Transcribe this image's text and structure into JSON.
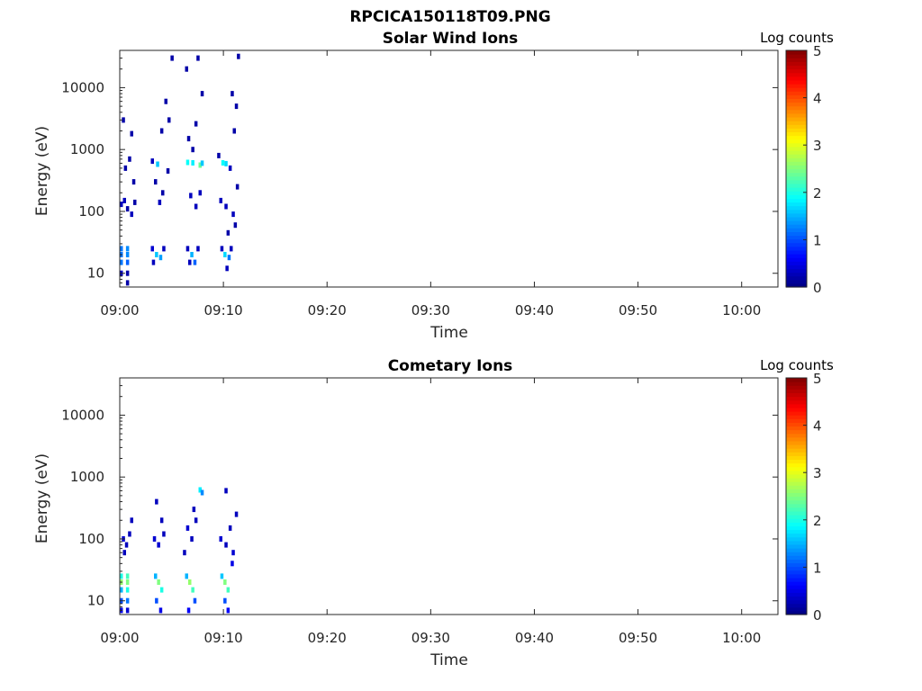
{
  "figure": {
    "title": "RPCICA150118T09.PNG"
  },
  "chart_data": [
    {
      "type": "heatmap",
      "title": "Solar Wind Ions",
      "xlabel": "Time",
      "ylabel": "Energy (eV)",
      "x_ticks": [
        "09:00",
        "09:10",
        "09:20",
        "09:30",
        "09:40",
        "09:50",
        "10:00"
      ],
      "x_tick_minutes": [
        0,
        10,
        20,
        30,
        40,
        50,
        60
      ],
      "x_range_minutes": [
        0,
        63.5
      ],
      "y_scale": "log",
      "y_ticks": [
        "10",
        "100",
        "1000",
        "10000"
      ],
      "y_tick_values": [
        10,
        100,
        1000,
        10000
      ],
      "y_range": [
        6,
        40000
      ],
      "grid": false,
      "colorbar": {
        "label": "Log counts",
        "range": [
          0,
          5
        ],
        "ticks": [
          "0",
          "1",
          "2",
          "3",
          "4",
          "5"
        ],
        "colormap": "jet"
      },
      "cells": [
        [
          0.0,
          25,
          1.2
        ],
        [
          0.0,
          20,
          1.2
        ],
        [
          0.0,
          15,
          1.2
        ],
        [
          0.0,
          10,
          0.3
        ],
        [
          0.6,
          25,
          1.3
        ],
        [
          0.6,
          20,
          1.3
        ],
        [
          0.6,
          15,
          1.1
        ],
        [
          0.6,
          10,
          0.2
        ],
        [
          0.6,
          7,
          0.2
        ],
        [
          0.0,
          130,
          0.3
        ],
        [
          0.3,
          150,
          0.3
        ],
        [
          0.6,
          110,
          0.2
        ],
        [
          1.0,
          90,
          0.3
        ],
        [
          1.3,
          140,
          0.2
        ],
        [
          0.2,
          3000,
          0.2
        ],
        [
          1.0,
          1800,
          0.2
        ],
        [
          0.4,
          500,
          0.2
        ],
        [
          1.2,
          300,
          0.2
        ],
        [
          0.8,
          700,
          0.2
        ],
        [
          3.0,
          25,
          0.4
        ],
        [
          3.4,
          20,
          1.6
        ],
        [
          3.8,
          18,
          1.4
        ],
        [
          3.1,
          15,
          0.3
        ],
        [
          4.1,
          25,
          0.3
        ],
        [
          3.5,
          580,
          1.6
        ],
        [
          3.0,
          650,
          0.3
        ],
        [
          3.3,
          300,
          0.2
        ],
        [
          3.7,
          140,
          0.3
        ],
        [
          4.0,
          200,
          0.2
        ],
        [
          4.3,
          6000,
          0.2
        ],
        [
          4.6,
          3000,
          0.2
        ],
        [
          4.9,
          30000,
          0.2
        ],
        [
          3.9,
          2000,
          0.2
        ],
        [
          4.5,
          450,
          0.2
        ],
        [
          6.4,
          25,
          0.3
        ],
        [
          6.8,
          20,
          1.5
        ],
        [
          7.1,
          15,
          1.1
        ],
        [
          6.6,
          15,
          0.3
        ],
        [
          7.4,
          25,
          0.3
        ],
        [
          6.4,
          620,
          1.9
        ],
        [
          6.9,
          610,
          1.8
        ],
        [
          7.6,
          560,
          2.4
        ],
        [
          7.8,
          600,
          1.6
        ],
        [
          6.9,
          1000,
          0.2
        ],
        [
          6.7,
          180,
          0.3
        ],
        [
          7.2,
          120,
          0.3
        ],
        [
          7.6,
          200,
          0.3
        ],
        [
          6.5,
          1500,
          0.2
        ],
        [
          7.2,
          2600,
          0.2
        ],
        [
          7.4,
          30000,
          0.2
        ],
        [
          7.8,
          8000,
          0.2
        ],
        [
          6.3,
          20000,
          0.2
        ],
        [
          9.7,
          25,
          0.3
        ],
        [
          10.0,
          20,
          1.7
        ],
        [
          10.4,
          18,
          1.2
        ],
        [
          10.6,
          25,
          0.3
        ],
        [
          10.2,
          12,
          0.3
        ],
        [
          9.8,
          610,
          1.9
        ],
        [
          10.1,
          590,
          1.7
        ],
        [
          10.5,
          500,
          0.3
        ],
        [
          9.6,
          150,
          0.3
        ],
        [
          10.1,
          120,
          0.3
        ],
        [
          10.8,
          90,
          0.3
        ],
        [
          11.0,
          60,
          0.2
        ],
        [
          11.2,
          250,
          0.2
        ],
        [
          10.9,
          2000,
          0.2
        ],
        [
          11.3,
          32000,
          0.2
        ],
        [
          10.7,
          8000,
          0.2
        ],
        [
          11.1,
          5000,
          0.2
        ],
        [
          10.3,
          45,
          0.2
        ],
        [
          9.4,
          800,
          0.2
        ]
      ]
    },
    {
      "type": "heatmap",
      "title": "Cometary Ions",
      "xlabel": "Time",
      "ylabel": "Energy (eV)",
      "x_ticks": [
        "09:00",
        "09:10",
        "09:20",
        "09:30",
        "09:40",
        "09:50",
        "10:00"
      ],
      "x_tick_minutes": [
        0,
        10,
        20,
        30,
        40,
        50,
        60
      ],
      "x_range_minutes": [
        0,
        63.5
      ],
      "y_scale": "log",
      "y_ticks": [
        "10",
        "100",
        "1000",
        "10000"
      ],
      "y_tick_values": [
        10,
        100,
        1000,
        10000
      ],
      "y_range": [
        6,
        40000
      ],
      "grid": false,
      "colorbar": {
        "label": "Log counts",
        "range": [
          0,
          5
        ],
        "ticks": [
          "0",
          "1",
          "2",
          "3",
          "4",
          "5"
        ],
        "colormap": "jet"
      },
      "cells": [
        [
          0.0,
          25,
          2.0
        ],
        [
          0.0,
          20,
          2.6
        ],
        [
          0.0,
          15,
          1.5
        ],
        [
          0.0,
          10,
          1.0
        ],
        [
          0.0,
          7,
          0.5
        ],
        [
          0.6,
          25,
          2.2
        ],
        [
          0.6,
          20,
          2.5
        ],
        [
          0.6,
          15,
          2.0
        ],
        [
          0.6,
          10,
          1.2
        ],
        [
          0.6,
          7,
          0.4
        ],
        [
          0.2,
          100,
          0.4
        ],
        [
          0.5,
          80,
          0.3
        ],
        [
          0.8,
          120,
          0.3
        ],
        [
          1.0,
          200,
          0.3
        ],
        [
          0.3,
          60,
          0.3
        ],
        [
          3.3,
          25,
          1.5
        ],
        [
          3.6,
          20,
          2.5
        ],
        [
          3.9,
          15,
          2.0
        ],
        [
          3.4,
          10,
          1.0
        ],
        [
          3.8,
          7,
          0.5
        ],
        [
          3.2,
          100,
          0.4
        ],
        [
          3.6,
          80,
          0.4
        ],
        [
          3.9,
          200,
          0.3
        ],
        [
          4.1,
          120,
          0.3
        ],
        [
          3.4,
          400,
          0.3
        ],
        [
          6.3,
          25,
          1.5
        ],
        [
          6.6,
          20,
          2.6
        ],
        [
          6.9,
          15,
          2.2
        ],
        [
          7.1,
          10,
          1.0
        ],
        [
          6.5,
          7,
          0.6
        ],
        [
          6.4,
          150,
          0.4
        ],
        [
          6.8,
          100,
          0.3
        ],
        [
          7.2,
          200,
          0.3
        ],
        [
          7.6,
          620,
          1.8
        ],
        [
          7.8,
          560,
          1.3
        ],
        [
          6.1,
          60,
          0.3
        ],
        [
          7.0,
          300,
          0.3
        ],
        [
          9.7,
          25,
          1.6
        ],
        [
          10.0,
          20,
          2.5
        ],
        [
          10.3,
          15,
          2.2
        ],
        [
          10.0,
          10,
          1.0
        ],
        [
          10.3,
          7,
          0.6
        ],
        [
          9.6,
          100,
          0.4
        ],
        [
          10.1,
          80,
          0.3
        ],
        [
          10.5,
          150,
          0.3
        ],
        [
          10.8,
          60,
          0.4
        ],
        [
          11.1,
          250,
          0.3
        ],
        [
          10.1,
          600,
          0.3
        ],
        [
          10.7,
          40,
          0.5
        ]
      ]
    }
  ]
}
